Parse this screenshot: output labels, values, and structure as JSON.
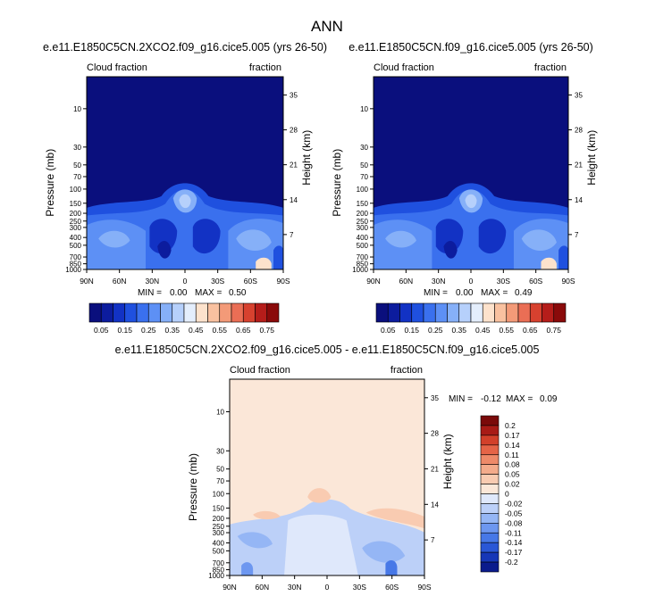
{
  "figure_title": "ANN",
  "colors": {
    "cloud_palette": [
      "#0a0f7d",
      "#0c1c9e",
      "#1232c4",
      "#1f50df",
      "#3a70ee",
      "#5d90f5",
      "#86b0f8",
      "#b6d0fb",
      "#e4eefc",
      "#fde2cc",
      "#f9c1a0",
      "#f39a78",
      "#ea6e55",
      "#d7412f",
      "#b51d1a",
      "#8a0a0a"
    ],
    "diff_palette": [
      "#0a1b8c",
      "#1637b7",
      "#2a57d6",
      "#4778e7",
      "#6d97f0",
      "#95b6f5",
      "#bcd0f8",
      "#dfe8fb",
      "#fbe7d8",
      "#f9cbb1",
      "#f4ab8b",
      "#ee8a69",
      "#e56447",
      "#d2402a",
      "#a81b16",
      "#7a0a0a"
    ],
    "line": "#000000"
  },
  "chart_data": [
    {
      "type": "heatmap",
      "title": "e.e11.E1850C5CN.2XCO2.f09_g16.cice5.005 (yrs 26-50)",
      "left_label": "Cloud fraction",
      "right_label": "fraction",
      "xlabel": "",
      "ylabel": "Pressure (mb)",
      "y2label": "Height (km)",
      "x_ticks": [
        "90N",
        "60N",
        "30N",
        "0",
        "30S",
        "60S",
        "90S"
      ],
      "y_ticks": [
        "10",
        "30",
        "50",
        "70",
        "100",
        "150",
        "200",
        "250",
        "300",
        "400",
        "500",
        "700",
        "850",
        "1000"
      ],
      "y2_ticks": [
        "35",
        "28",
        "21",
        "14",
        "7"
      ],
      "stats": {
        "min_label": "MIN =",
        "min": "0.00",
        "max_label": "MAX =",
        "max": "0.50"
      },
      "colorbar": {
        "orientation": "horizontal",
        "labels": [
          "0.05",
          "0.15",
          "0.25",
          "0.35",
          "0.45",
          "0.55",
          "0.65",
          "0.75"
        ]
      }
    },
    {
      "type": "heatmap",
      "title": "e.e11.E1850C5CN.f09_g16.cice5.005 (yrs 26-50)",
      "left_label": "Cloud fraction",
      "right_label": "fraction",
      "xlabel": "",
      "ylabel": "Pressure (mb)",
      "y2label": "Height (km)",
      "x_ticks": [
        "90N",
        "60N",
        "30N",
        "0",
        "30S",
        "60S",
        "90S"
      ],
      "y_ticks": [
        "10",
        "30",
        "50",
        "70",
        "100",
        "150",
        "200",
        "250",
        "300",
        "400",
        "500",
        "700",
        "850",
        "1000"
      ],
      "y2_ticks": [
        "35",
        "28",
        "21",
        "14",
        "7"
      ],
      "stats": {
        "min_label": "MIN =",
        "min": "0.00",
        "max_label": "MAX =",
        "max": "0.49"
      },
      "colorbar": {
        "orientation": "horizontal",
        "labels": [
          "0.05",
          "0.15",
          "0.25",
          "0.35",
          "0.45",
          "0.55",
          "0.65",
          "0.75"
        ]
      }
    },
    {
      "type": "heatmap",
      "title": "e.e11.E1850C5CN.2XCO2.f09_g16.cice5.005 - e.e11.E1850C5CN.f09_g16.cice5.005",
      "left_label": "Cloud fraction",
      "right_label": "fraction",
      "xlabel": "",
      "ylabel": "Pressure (mb)",
      "y2label": "Height (km)",
      "x_ticks": [
        "90N",
        "60N",
        "30N",
        "0",
        "30S",
        "60S",
        "90S"
      ],
      "y_ticks": [
        "10",
        "30",
        "50",
        "70",
        "100",
        "150",
        "200",
        "250",
        "300",
        "400",
        "500",
        "700",
        "850",
        "1000"
      ],
      "y2_ticks": [
        "35",
        "28",
        "21",
        "14",
        "7"
      ],
      "stats": {
        "min_label": "MIN =",
        "min": "-0.12",
        "max_label": "MAX =",
        "max": "0.09"
      },
      "colorbar": {
        "orientation": "vertical",
        "labels": [
          "0.2",
          "0.17",
          "0.14",
          "0.11",
          "0.08",
          "0.05",
          "0.02",
          "0",
          "-0.02",
          "-0.05",
          "-0.08",
          "-0.11",
          "-0.14",
          "-0.17",
          "-0.2"
        ]
      }
    }
  ]
}
